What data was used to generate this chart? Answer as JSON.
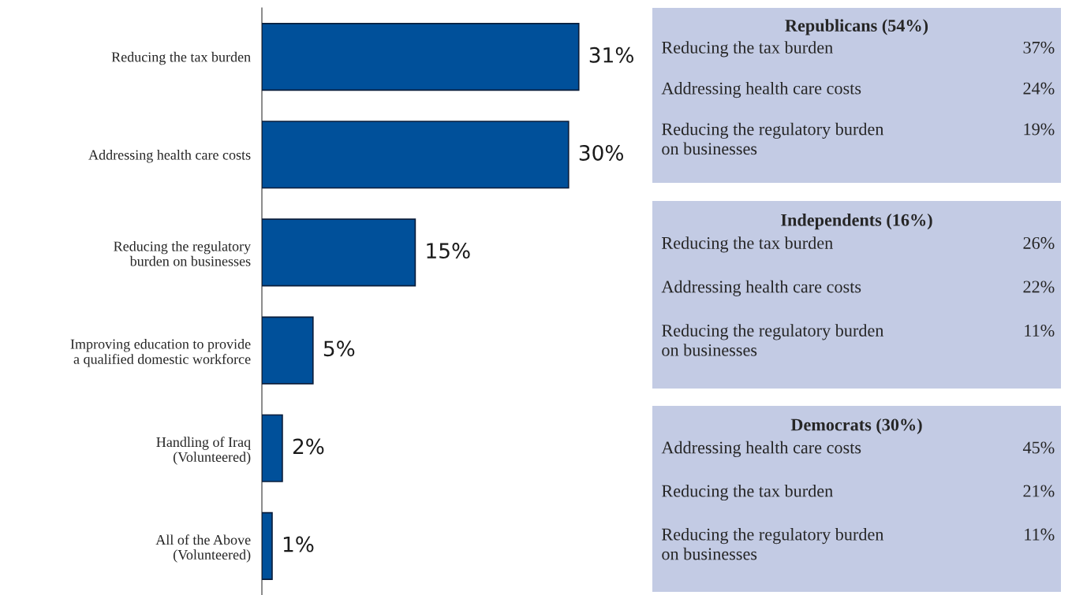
{
  "chart_data": [
    {
      "type": "bar",
      "orientation": "horizontal",
      "categories": [
        "Reducing the tax burden",
        "Addressing health care costs",
        "Reducing the regulatory\nburden on businesses",
        "Improving education to provide\na qualified domestic workforce",
        "Handling of Iraq\n(Volunteered)",
        "All of the Above\n(Volunteered)"
      ],
      "values": [
        31,
        30,
        15,
        5,
        2,
        1
      ],
      "value_labels": [
        "31%",
        "30%",
        "15%",
        "5%",
        "2%",
        "1%"
      ],
      "color": "#00509a",
      "tick_labels": "y",
      "grid": false,
      "legend": false
    },
    {
      "type": "other",
      "title": "Republicans (54%)",
      "categories": [
        "Reducing the tax burden",
        "Addressing health care costs",
        "Reducing the regulatory burden\non businesses"
      ],
      "value_labels": [
        "37%",
        "24%",
        "19%"
      ],
      "color": "#c3cbe4"
    },
    {
      "type": "other",
      "title": "Independents (16%)",
      "categories": [
        "Reducing the tax burden",
        "Addressing health care costs",
        "Reducing the regulatory burden\non businesses"
      ],
      "value_labels": [
        "26%",
        "22%",
        "11%"
      ],
      "color": "#c3cbe4"
    },
    {
      "type": "other",
      "title": "Democrats (30%)",
      "categories": [
        "Addressing health care costs",
        "Reducing the tax burden",
        "Reducing the regulatory burden\non businesses"
      ],
      "value_labels": [
        "45%",
        "21%",
        "11%"
      ],
      "color": "#c3cbe4"
    }
  ]
}
